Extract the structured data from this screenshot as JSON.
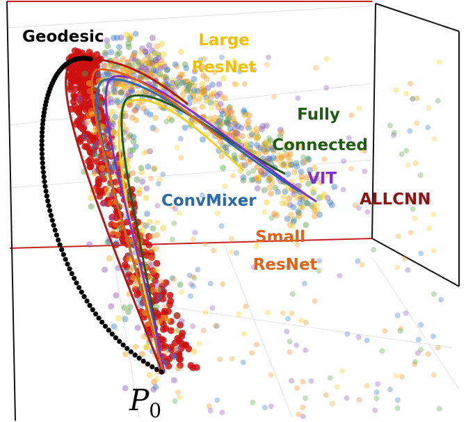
{
  "labels": {
    "geodesic": "Geodesic",
    "large_resnet": [
      "Large",
      "ResNet"
    ],
    "fully_connected": [
      "Fully",
      "Connected"
    ],
    "vit": "VIT",
    "convmixer": "ConvMixer",
    "allcnn": "ALLCNN",
    "small_resnet": [
      "Small",
      "ResNet"
    ],
    "p0": {
      "symbol": "P",
      "subscript": "0"
    }
  }
}
